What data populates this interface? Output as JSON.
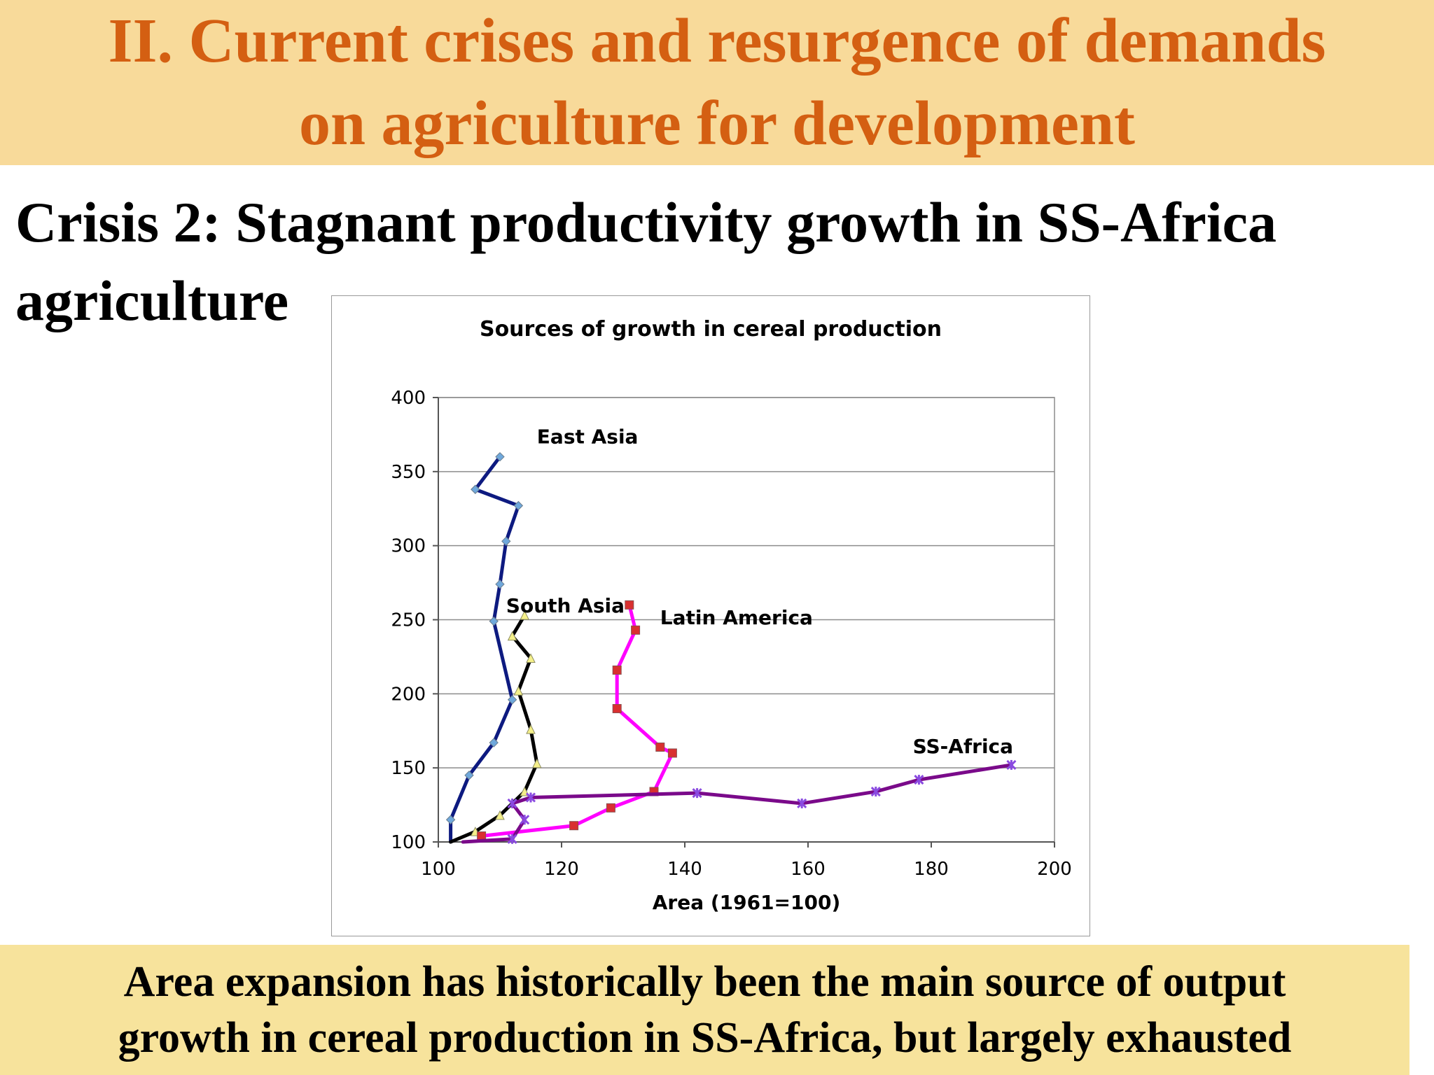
{
  "slide": {
    "title_lines": [
      "II. Current crises and resurgence of demands",
      "on agriculture for development"
    ],
    "subtitle_lines": [
      "Crisis 2: Stagnant productivity growth in SS-Africa",
      "agriculture"
    ],
    "footer_lines": [
      "Area expansion has historically been the main source of output",
      "growth in cereal production in SS-Africa, but largely exhausted"
    ],
    "colors": {
      "title_text": "#d45f12",
      "top_banner": "#f8da9a",
      "bottom_banner": "#f7e39c"
    }
  },
  "chart_data": {
    "type": "line",
    "title": "Sources of growth in cereal production",
    "xlabel": "Area (1961=100)",
    "ylabel": "",
    "xlim": [
      100,
      200
    ],
    "ylim": [
      100,
      400
    ],
    "x_ticks": [
      "100",
      "120",
      "140",
      "160",
      "180",
      "200"
    ],
    "y_ticks": [
      "100",
      "150",
      "200",
      "250",
      "300",
      "350",
      "400"
    ],
    "grid": "horizontal",
    "legend": "none",
    "series": [
      {
        "name": "East Asia",
        "color": "#0d1a80",
        "marker_color": "#6fa8dc",
        "marker": "diamond",
        "points": [
          [
            102,
            100
          ],
          [
            102,
            115
          ],
          [
            105,
            145
          ],
          [
            109,
            167
          ],
          [
            112,
            196
          ],
          [
            109,
            249
          ],
          [
            110,
            274
          ],
          [
            111,
            303
          ],
          [
            113,
            327
          ],
          [
            106,
            338
          ],
          [
            110,
            360
          ]
        ]
      },
      {
        "name": "South Asia",
        "color": "#000000",
        "marker_color": "#f5f08a",
        "marker": "triangle",
        "points": [
          [
            102,
            100
          ],
          [
            106,
            107
          ],
          [
            110,
            118
          ],
          [
            114,
            134
          ],
          [
            116,
            153
          ],
          [
            115,
            176
          ],
          [
            113,
            202
          ],
          [
            115,
            224
          ],
          [
            112,
            239
          ],
          [
            114,
            253
          ]
        ]
      },
      {
        "name": "Latin America",
        "color": "#ff00ff",
        "marker_color": "#d93030",
        "marker": "square",
        "points": [
          [
            107,
            104
          ],
          [
            122,
            111
          ],
          [
            128,
            123
          ],
          [
            135,
            134
          ],
          [
            138,
            160
          ],
          [
            136,
            164
          ],
          [
            129,
            190
          ],
          [
            129,
            216
          ],
          [
            132,
            243
          ],
          [
            131,
            260
          ]
        ]
      },
      {
        "name": "SS-Africa",
        "color": "#7a0a8a",
        "marker_color": "#8a4ae0",
        "marker": "star",
        "points": [
          [
            104,
            100
          ],
          [
            112,
            102
          ],
          [
            114,
            115
          ],
          [
            112,
            126
          ],
          [
            115,
            130
          ],
          [
            142,
            133
          ],
          [
            159,
            126
          ],
          [
            171,
            134
          ],
          [
            178,
            142
          ],
          [
            193,
            152
          ]
        ]
      }
    ],
    "annotations": [
      {
        "text": "East Asia",
        "x": 116,
        "y": 369
      },
      {
        "text": "South Asia",
        "x": 111,
        "y": 255
      },
      {
        "text": "Latin America",
        "x": 136,
        "y": 247
      },
      {
        "text": "SS-Africa",
        "x": 177,
        "y": 160
      }
    ]
  }
}
